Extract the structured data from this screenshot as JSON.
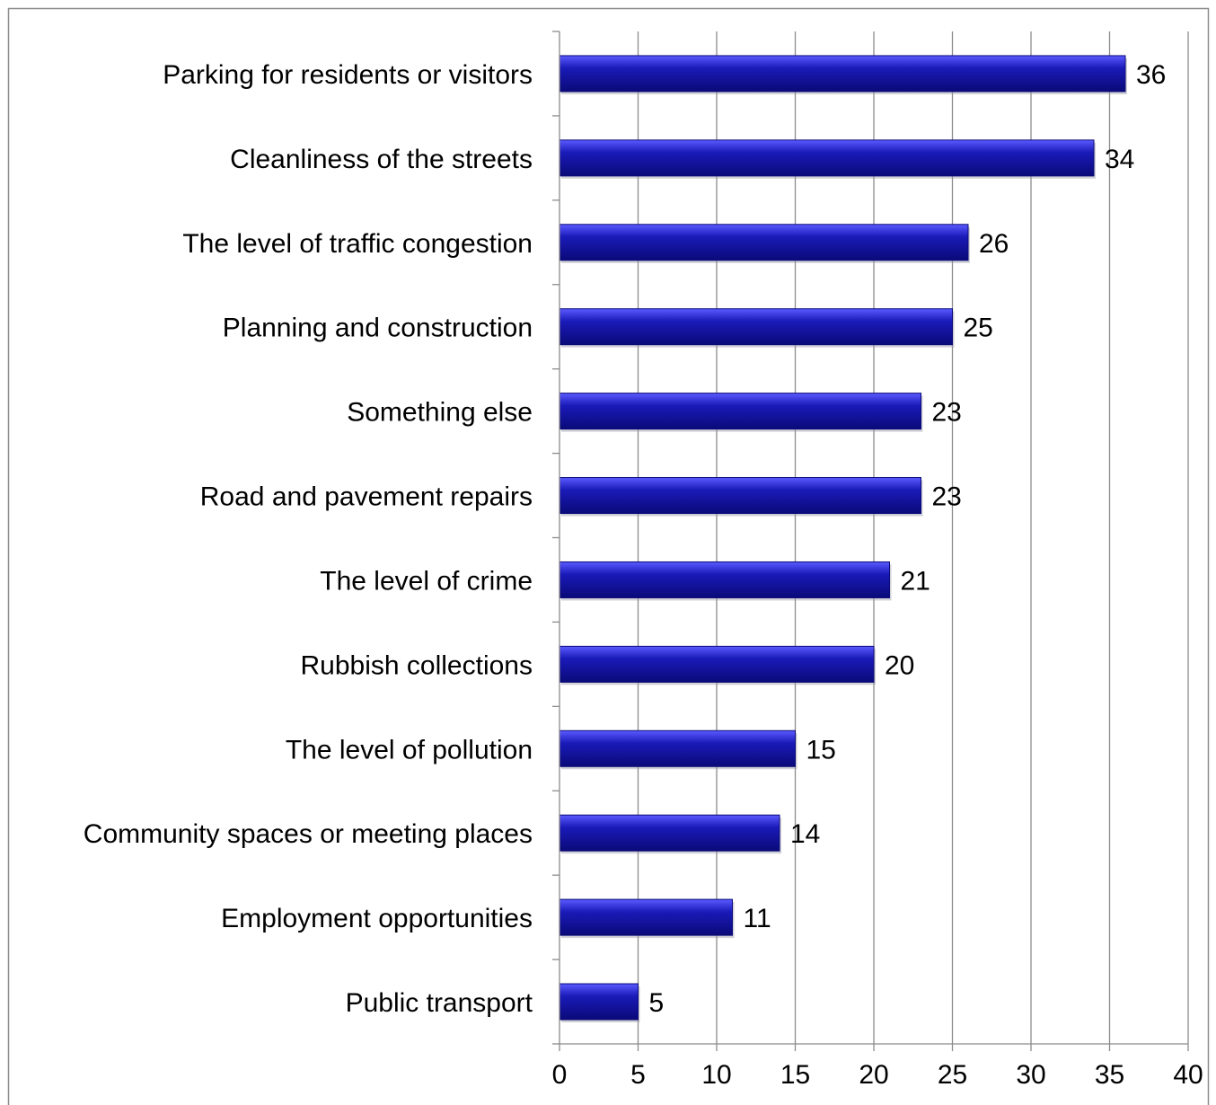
{
  "chart_data": {
    "type": "bar",
    "orientation": "horizontal",
    "categories": [
      "Parking for residents or visitors",
      "Cleanliness of the streets",
      "The level of traffic congestion",
      "Planning and construction",
      "Something else",
      "Road and pavement repairs",
      "The level of crime",
      "Rubbish collections",
      "The level of pollution",
      "Community spaces or meeting places",
      "Employment opportunities",
      "Public transport"
    ],
    "values": [
      36,
      34,
      26,
      25,
      23,
      23,
      21,
      20,
      15,
      14,
      11,
      5
    ],
    "xlim": [
      0,
      40
    ],
    "x_ticks": [
      "0",
      "5",
      "10",
      "15",
      "20",
      "25",
      "30",
      "35",
      "40"
    ],
    "grid": "vertical",
    "data_labels": true,
    "bar_color": "#1a1ab8",
    "bar_color_dark": "#0a0a78",
    "bar_color_light": "#5a5aff"
  }
}
